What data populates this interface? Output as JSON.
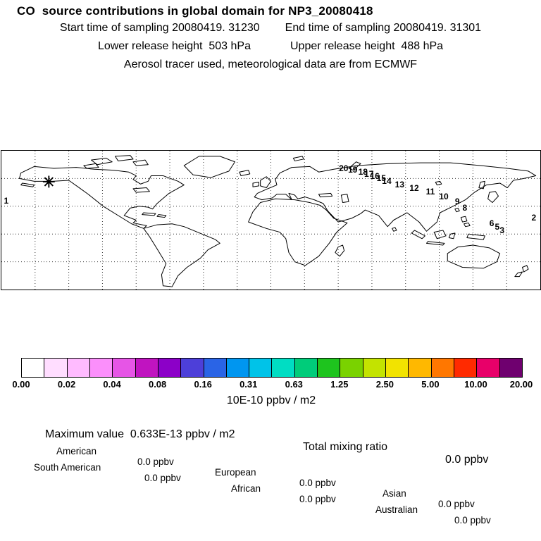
{
  "header": {
    "title": "CO  source contributions in global domain for NP3_20080418",
    "line2_left": "Start time of sampling 20080419. 31230",
    "line2_right": "End time of sampling 20080419. 31301",
    "line3_left": "Lower release height  503 hPa",
    "line3_right": "Upper release height  488 hPa",
    "line4": "Aerosol tracer used, meteorological data are from ECMWF"
  },
  "chart_data": {
    "type": "heatmap",
    "title": "CO  source contributions in global domain for NP3_20080418",
    "map": {
      "projection": "equirectangular world map with dotted graticule",
      "lon_range": [
        -180,
        180
      ],
      "lat_range": [
        -60,
        90
      ],
      "field_note": "no colored contribution cells visible; field values are ~0 everywhere"
    },
    "colorbar": {
      "unit": "10E-10 ppbv / m2",
      "tick_labels": [
        "0.00",
        "0.02",
        "0.04",
        "0.08",
        "0.16",
        "0.31",
        "0.63",
        "1.25",
        "2.50",
        "5.00",
        "10.00",
        "20.00"
      ],
      "colors": [
        "#ffffff",
        "#ffddff",
        "#ffbbff",
        "#fb8ffb",
        "#e655e6",
        "#c014c0",
        "#8c00c8",
        "#4d3fd9",
        "#2a64e6",
        "#0096f0",
        "#00c3e8",
        "#00ddc3",
        "#00cc7a",
        "#1ec41e",
        "#7ad200",
        "#c3e300",
        "#f2e300",
        "#ffb800",
        "#ff7700",
        "#ff2a00",
        "#e80069",
        "#6f006f"
      ]
    },
    "receptor_marker": {
      "symbol": "asterisk-star",
      "x_pct": 8.8,
      "y_pct": 22.8
    },
    "trajectory_markers": [
      {
        "label": "1",
        "x_pct": 0.9,
        "y_pct": 36.0
      },
      {
        "label": "2",
        "x_pct": 98.8,
        "y_pct": 48.2
      },
      {
        "label": "3",
        "x_pct": 92.9,
        "y_pct": 57.4
      },
      {
        "label": "5",
        "x_pct": 92.0,
        "y_pct": 54.8
      },
      {
        "label": "6",
        "x_pct": 91.0,
        "y_pct": 52.3
      },
      {
        "label": "8",
        "x_pct": 86.0,
        "y_pct": 41.1
      },
      {
        "label": "9",
        "x_pct": 84.6,
        "y_pct": 36.5
      },
      {
        "label": "10",
        "x_pct": 82.1,
        "y_pct": 33.0
      },
      {
        "label": "11",
        "x_pct": 79.6,
        "y_pct": 29.4
      },
      {
        "label": "12",
        "x_pct": 76.6,
        "y_pct": 26.9
      },
      {
        "label": "13",
        "x_pct": 73.9,
        "y_pct": 24.4
      },
      {
        "label": "14",
        "x_pct": 71.5,
        "y_pct": 21.8
      },
      {
        "label": "15",
        "x_pct": 70.5,
        "y_pct": 19.8
      },
      {
        "label": "16",
        "x_pct": 69.3,
        "y_pct": 18.3
      },
      {
        "label": "17",
        "x_pct": 68.2,
        "y_pct": 16.8
      },
      {
        "label": "18",
        "x_pct": 67.1,
        "y_pct": 15.2
      },
      {
        "label": "19",
        "x_pct": 65.2,
        "y_pct": 13.7
      },
      {
        "label": "20",
        "x_pct": 63.5,
        "y_pct": 12.7
      }
    ]
  },
  "stats": {
    "max_label": "Maximum value  0.633E-13 ppbv / m2",
    "total_label": "Total mixing ratio",
    "total_value": "0.0 ppbv",
    "regions": [
      {
        "name": "American",
        "value": "0.0 ppbv"
      },
      {
        "name": "European",
        "value": "0.0 ppbv"
      },
      {
        "name": "Asian",
        "value": "0.0 ppbv"
      },
      {
        "name": "South American",
        "value": "0.0 ppbv"
      },
      {
        "name": "African",
        "value": "0.0 ppbv"
      },
      {
        "name": "Australian",
        "value": "0.0 ppbv"
      }
    ]
  }
}
